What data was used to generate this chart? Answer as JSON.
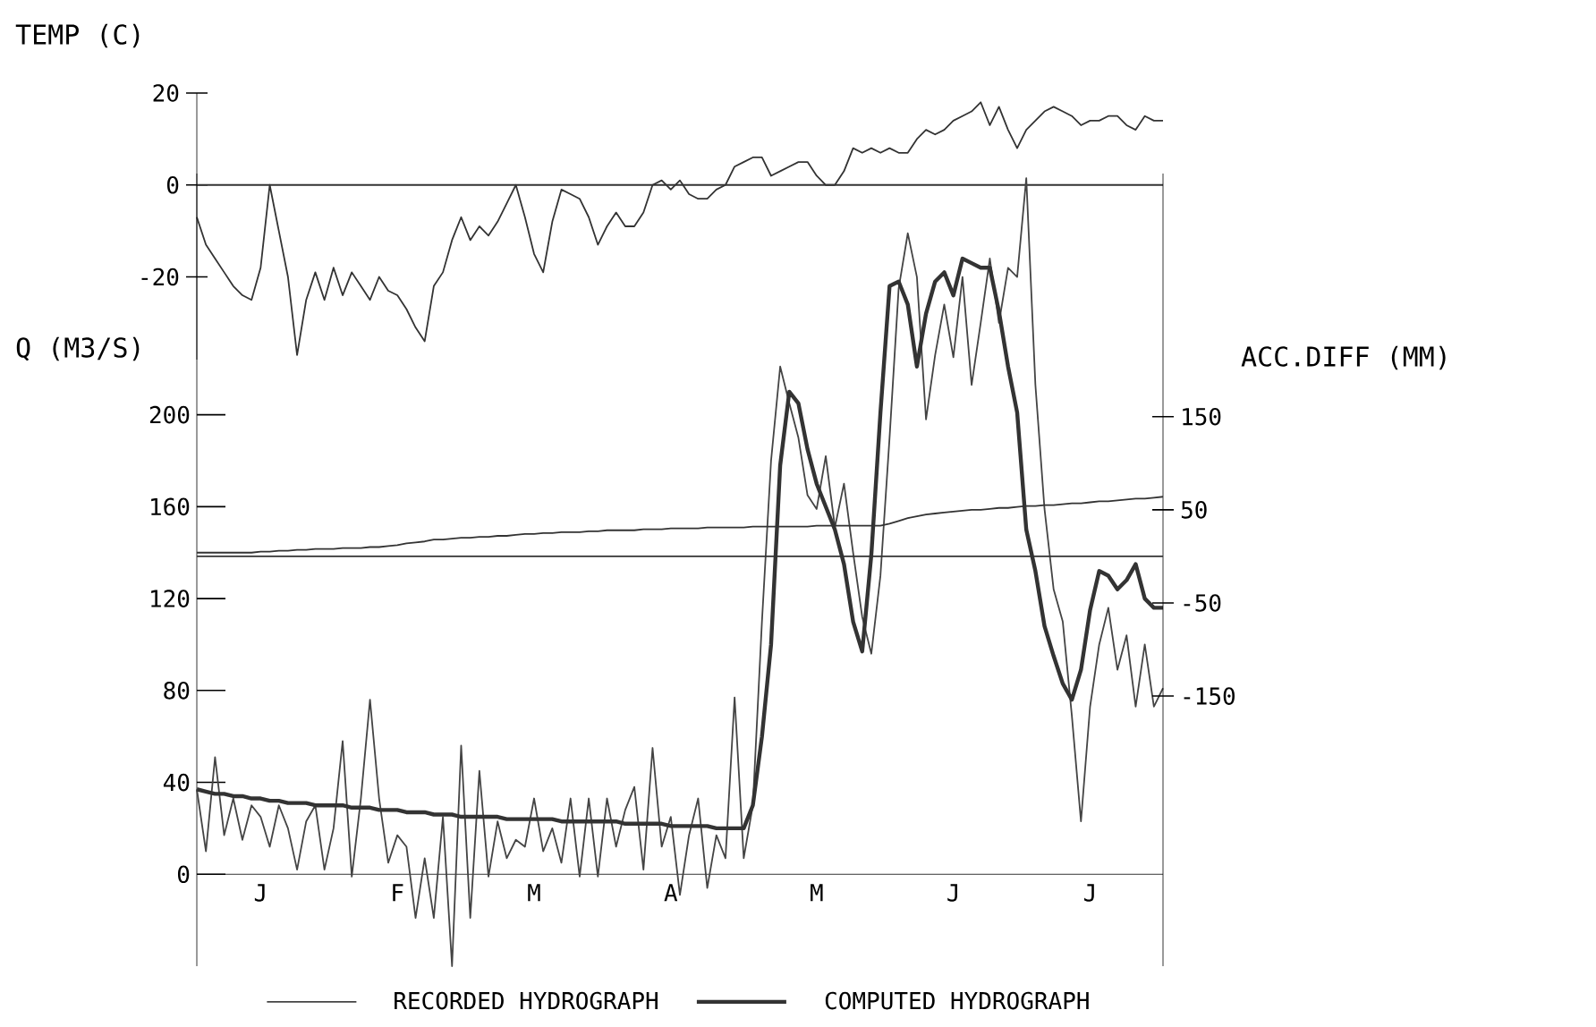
{
  "chart_data": [
    {
      "type": "line",
      "ylabel": "TEMP (C)",
      "categories": [
        null,
        null,
        null,
        null,
        null,
        null,
        null,
        null,
        null,
        null,
        null,
        null,
        null,
        null,
        null,
        null,
        null,
        null,
        null,
        null,
        null,
        null,
        null,
        null,
        null,
        null,
        null,
        null,
        null,
        null,
        null,
        null,
        null,
        null,
        null,
        null,
        null,
        null,
        null,
        null,
        null,
        null,
        null,
        null,
        null,
        null,
        null,
        null,
        null,
        null,
        null,
        null,
        null,
        null,
        null,
        null,
        null,
        null,
        null,
        null,
        null,
        null,
        null,
        null,
        null,
        null,
        null,
        null,
        null,
        null,
        null,
        null,
        null,
        null,
        null,
        null,
        null,
        null,
        null,
        null,
        null,
        null,
        null,
        null,
        null,
        null,
        null,
        null,
        null,
        null,
        null,
        null,
        null,
        null,
        null,
        null,
        null,
        null,
        null,
        null,
        null,
        null,
        null,
        null,
        null,
        null,
        null
      ],
      "ylim": [
        -38,
        20
      ],
      "yticks": [
        -20,
        0,
        20
      ],
      "tick_labels": "y",
      "ref_lines": [
        {
          "axis": "y",
          "value": 0,
          "color": "#333333"
        }
      ],
      "series": [
        {
          "color": "#333333",
          "values": [
            -7,
            -13,
            -16,
            -19,
            -22,
            -24,
            -25,
            -18,
            0,
            -10,
            -20,
            -37,
            -25,
            -19,
            -25,
            -18,
            -24,
            -19,
            -22,
            -25,
            -20,
            -23,
            -24,
            -27,
            -31,
            -34,
            -22,
            -19,
            -12,
            -7,
            -12,
            -9,
            -11,
            -8,
            -4,
            0,
            -7,
            -15,
            -19,
            -8,
            -1,
            -2,
            -3,
            -7,
            -13,
            -9,
            -6,
            -9,
            -9,
            -6,
            0,
            1,
            -1,
            1,
            -2,
            -3,
            -3,
            -1,
            0,
            4,
            5,
            6,
            6,
            2,
            3,
            4,
            5,
            5,
            2,
            0,
            0,
            3,
            8,
            7,
            8,
            7,
            8,
            7,
            7,
            10,
            12,
            11,
            12,
            14,
            15,
            16,
            18,
            13,
            17,
            12,
            8,
            12,
            14,
            16,
            17,
            16,
            15,
            13,
            14,
            14,
            15,
            15,
            13,
            12,
            15,
            14,
            14
          ]
        }
      ]
    },
    {
      "type": "line",
      "ylabel": "Q (M3/S)",
      "y2label": "ACC.DIFF (MM)",
      "categories": [
        null,
        null,
        null,
        null,
        null,
        null,
        null,
        "J",
        null,
        null,
        null,
        null,
        null,
        null,
        null,
        null,
        null,
        null,
        null,
        null,
        null,
        null,
        "F",
        null,
        null,
        null,
        null,
        null,
        null,
        null,
        null,
        null,
        null,
        null,
        null,
        null,
        null,
        "M",
        null,
        null,
        null,
        null,
        null,
        null,
        null,
        null,
        null,
        null,
        null,
        null,
        null,
        null,
        "A",
        null,
        null,
        null,
        null,
        null,
        null,
        null,
        null,
        null,
        null,
        null,
        null,
        null,
        null,
        null,
        "M",
        null,
        null,
        null,
        null,
        null,
        null,
        null,
        null,
        null,
        null,
        null,
        null,
        null,
        null,
        "J",
        null,
        null,
        null,
        null,
        null,
        null,
        null,
        null,
        null,
        null,
        null,
        null,
        null,
        null,
        "J",
        null,
        null,
        null,
        null,
        null,
        null,
        null,
        null
      ],
      "ylim": [
        -40,
        305
      ],
      "yticks": [
        0,
        40,
        80,
        120,
        160,
        200
      ],
      "y2lim": [
        -440,
        411
      ],
      "y2ticks": [
        -150,
        -50,
        50,
        150
      ],
      "ref_lines": [
        {
          "axis": "y2",
          "value": 0,
          "color": "#333333"
        }
      ],
      "legend": "bottom",
      "series": [
        {
          "name": "RECORDED HYDROGRAPH",
          "color": "#444444",
          "values": [
            37,
            10,
            51,
            17,
            33,
            15,
            30,
            25,
            12,
            30,
            20,
            2,
            23,
            30,
            2,
            20,
            58,
            -1,
            33,
            76,
            33,
            5,
            17,
            12,
            -19,
            7,
            -19,
            25,
            -40,
            56,
            -19,
            45,
            -1,
            23,
            7,
            15,
            12,
            33,
            10,
            20,
            5,
            33,
            -1,
            33,
            -1,
            33,
            12,
            28,
            38,
            2,
            55,
            12,
            25,
            -9,
            17,
            33,
            -6,
            17,
            7,
            77,
            7,
            30,
            110,
            180,
            221,
            205,
            190,
            165,
            159,
            182,
            151,
            170,
            140,
            112,
            96,
            130,
            190,
            255,
            279,
            260,
            198,
            226,
            248,
            225,
            260,
            213,
            240,
            268,
            240,
            264,
            260,
            303,
            213,
            159,
            124,
            110,
            69,
            23,
            73,
            100,
            116,
            89,
            104,
            73,
            100,
            73,
            81
          ]
        },
        {
          "name": "COMPUTED HYDROGRAPH",
          "color": "#333333",
          "values": [
            37,
            36,
            35,
            35,
            34,
            34,
            33,
            33,
            32,
            32,
            31,
            31,
            31,
            30,
            30,
            30,
            30,
            29,
            29,
            29,
            28,
            28,
            28,
            27,
            27,
            27,
            26,
            26,
            26,
            25,
            25,
            25,
            25,
            25,
            24,
            24,
            24,
            24,
            24,
            24,
            23,
            23,
            23,
            23,
            23,
            23,
            23,
            22,
            22,
            22,
            22,
            22,
            21,
            21,
            21,
            21,
            21,
            20,
            20,
            20,
            20,
            30,
            60,
            100,
            178,
            210,
            205,
            185,
            170,
            160,
            150,
            135,
            110,
            97,
            139,
            201,
            256,
            258,
            248,
            221,
            244,
            258,
            262,
            252,
            268,
            266,
            264,
            264,
            245,
            221,
            201,
            150,
            132,
            108,
            95,
            83,
            76,
            89,
            115,
            132,
            130,
            124,
            128,
            135,
            120,
            116,
            116
          ]
        },
        {
          "color": "#333333",
          "axis": "y2",
          "values": [
            4,
            4,
            4,
            4,
            4,
            4,
            4,
            5,
            5,
            6,
            6,
            7,
            7,
            8,
            8,
            8,
            9,
            9,
            9,
            10,
            10,
            11,
            12,
            14,
            15,
            16,
            18,
            18,
            19,
            20,
            20,
            21,
            21,
            22,
            22,
            23,
            24,
            24,
            25,
            25,
            26,
            26,
            26,
            27,
            27,
            28,
            28,
            28,
            28,
            29,
            29,
            29,
            30,
            30,
            30,
            30,
            31,
            31,
            31,
            31,
            31,
            32,
            32,
            32,
            32,
            32,
            32,
            32,
            33,
            33,
            33,
            33,
            33,
            33,
            33,
            33,
            35,
            38,
            41,
            43,
            45,
            46,
            47,
            48,
            49,
            50,
            50,
            51,
            52,
            52,
            53,
            54,
            54,
            55,
            55,
            56,
            57,
            57,
            58,
            59,
            59,
            60,
            61,
            62,
            62,
            63,
            64
          ]
        }
      ]
    }
  ]
}
